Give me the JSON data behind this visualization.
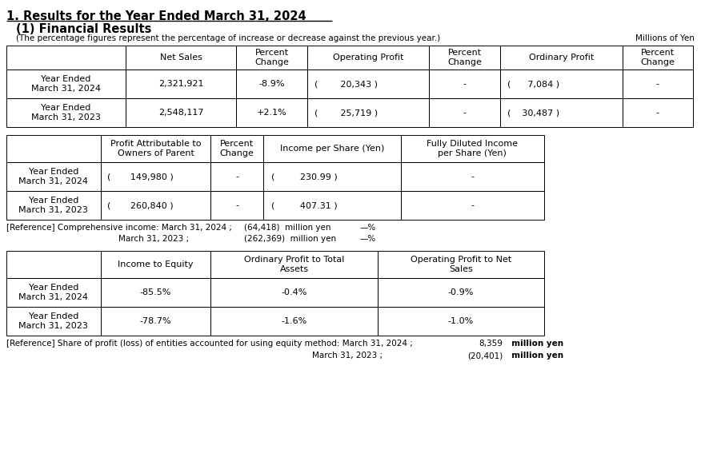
{
  "title": "1. Results for the Year Ended March 31, 2024",
  "subtitle": "(1) Financial Results",
  "note": "(The percentage figures represent the percentage of increase or decrease against the previous year.)",
  "millions_label": "Millions of Yen",
  "bg_color": "#ffffff",
  "table1": {
    "headers": [
      "",
      "Net Sales",
      "Percent\nChange",
      "Operating Profit",
      "Percent\nChange",
      "Ordinary Profit",
      "Percent\nChange"
    ],
    "rows": [
      [
        "Year Ended\nMarch 31, 2024",
        "2,321,921",
        "-8.9%",
        "(        20,343 )",
        "-",
        "(      7,084 )",
        "-"
      ],
      [
        "Year Ended\nMarch 31, 2023",
        "2,548,117",
        "+2.1%",
        "(        25,719 )",
        "-",
        "(    30,487 )",
        "-"
      ]
    ]
  },
  "table2": {
    "headers": [
      "",
      "Profit Attributable to\nOwners of Parent",
      "Percent\nChange",
      "Income per Share (Yen)",
      "Fully Diluted Income\nper Share (Yen)"
    ],
    "rows": [
      [
        "Year Ended\nMarch 31, 2024",
        "(       149,980 )",
        "-",
        "(         230.99 )",
        "-"
      ],
      [
        "Year Ended\nMarch 31, 2023",
        "(       260,840 )",
        "-",
        "(         407.31 )",
        "-"
      ]
    ]
  },
  "reference1_line1": "[Reference] Comprehensive income: March 31, 2024 ;",
  "reference1_val1": "(64,418)  million yen",
  "reference1_pct1": "—%",
  "reference1_line2": "March 31, 2023 ;",
  "reference1_val2": "(262,369)  million yen",
  "reference1_pct2": "—%",
  "table3": {
    "headers": [
      "",
      "Income to Equity",
      "Ordinary Profit to Total\nAssets",
      "Operating Profit to Net\nSales"
    ],
    "rows": [
      [
        "Year Ended\nMarch 31, 2024",
        "-85.5%",
        "-0.4%",
        "-0.9%"
      ],
      [
        "Year Ended\nMarch 31, 2023",
        "-78.7%",
        "-1.6%",
        "-1.0%"
      ]
    ]
  },
  "reference2_line1": "[Reference] Share of profit (loss) of entities accounted for using equity method: March 31, 2024 ;",
  "reference2_val1": "8,359",
  "reference2_unit1": "  million yen",
  "reference2_line2": "March 31, 2023 ;",
  "reference2_val2": "(20,401)",
  "reference2_unit2": "  million yen",
  "title_fontsize": 10.5,
  "body_fontsize": 8.0,
  "small_fontsize": 7.5
}
